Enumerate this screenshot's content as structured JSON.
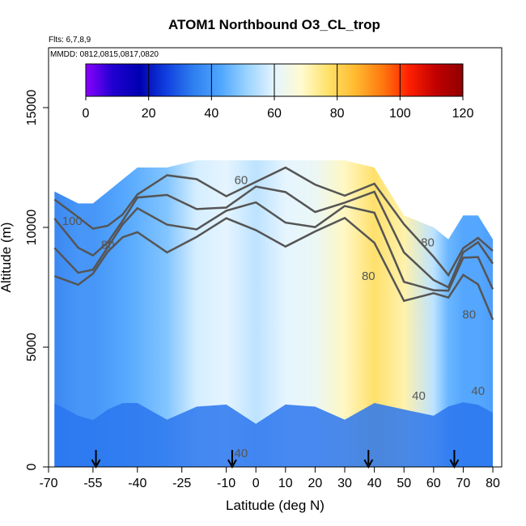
{
  "chart_data": {
    "type": "heatmap",
    "title": "ATOM1 Northbound O3_CL_trop",
    "annotations": [
      "Flts: 6,7,8,9",
      "MMDD: 0812,0815,0817,0820"
    ],
    "xlabel": "Latitude (deg N)",
    "ylabel": "Altitude (m)",
    "xlim": [
      -70,
      83
    ],
    "ylim": [
      0,
      17500
    ],
    "x_ticks": [
      "-70",
      "-55",
      "-40",
      "-25",
      "-10",
      "0",
      "10",
      "20",
      "30",
      "40",
      "50",
      "60",
      "70",
      "80"
    ],
    "y_ticks": [
      "0",
      "5000",
      "10000",
      "15000"
    ],
    "colorbar": {
      "ticks": [
        "0",
        "20",
        "40",
        "60",
        "80",
        "100",
        "120"
      ],
      "range": [
        0,
        120
      ],
      "colors": [
        "#8b00ff",
        "#2000d0",
        "#0000b0",
        "#1040e0",
        "#2f7ff0",
        "#4fa6ff",
        "#9bd4ff",
        "#e4f4ff",
        "#fffbd0",
        "#ffe26a",
        "#ffba30",
        "#ff7a10",
        "#ff2000",
        "#c00000",
        "#900000"
      ]
    },
    "contour_levels": [
      40,
      60,
      80,
      100
    ],
    "contour_labels": [
      "60",
      "40",
      "40",
      "40",
      "80",
      "100",
      "80",
      "80",
      "80"
    ],
    "flight_arrows_lat": [
      -54,
      -8,
      38,
      67
    ],
    "profile": [
      {
        "lat": -68,
        "top": 11500,
        "value": 35
      },
      {
        "lat": -60,
        "top": 11000,
        "value": 38
      },
      {
        "lat": -55,
        "top": 11000,
        "value": 38
      },
      {
        "lat": -50,
        "top": 11500,
        "value": 40
      },
      {
        "lat": -45,
        "top": 12000,
        "value": 42
      },
      {
        "lat": -40,
        "top": 12500,
        "value": 44
      },
      {
        "lat": -30,
        "top": 12500,
        "value": 48
      },
      {
        "lat": -20,
        "top": 12800,
        "value": 58
      },
      {
        "lat": -10,
        "top": 12800,
        "value": 60
      },
      {
        "lat": 0,
        "top": 12800,
        "value": 55
      },
      {
        "lat": 10,
        "top": 12800,
        "value": 60
      },
      {
        "lat": 20,
        "top": 12800,
        "value": 62
      },
      {
        "lat": 30,
        "top": 12800,
        "value": 70
      },
      {
        "lat": 40,
        "top": 12500,
        "value": 78
      },
      {
        "lat": 50,
        "top": 10500,
        "value": 72
      },
      {
        "lat": 60,
        "top": 10000,
        "value": 55
      },
      {
        "lat": 65,
        "top": 9500,
        "value": 45
      },
      {
        "lat": 70,
        "top": 10500,
        "value": 42
      },
      {
        "lat": 75,
        "top": 10500,
        "value": 42
      },
      {
        "lat": 80,
        "top": 9500,
        "value": 40
      }
    ]
  }
}
